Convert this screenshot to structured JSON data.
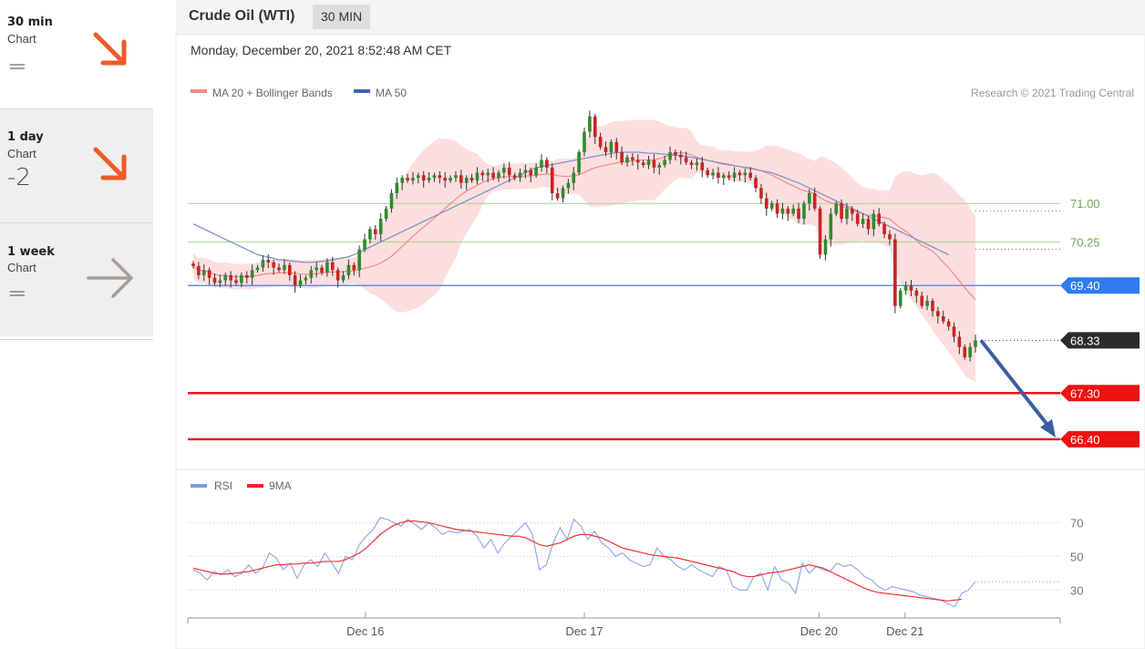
{
  "sidebar": {
    "timeframes": [
      {
        "name": "30 min",
        "sub": "Chart",
        "score": "=",
        "arrow": "down-right-arrow-icon",
        "color": "#f05a28"
      },
      {
        "name": "1 day",
        "sub": "Chart",
        "score": "-2",
        "arrow": "down-right-arrow-icon",
        "color": "#f05a28"
      },
      {
        "name": "1 week",
        "sub": "Chart",
        "score": "=",
        "arrow": "right-arrow-icon",
        "color": "#a89e96"
      }
    ]
  },
  "header": {
    "title": "Crude Oil (WTI)",
    "interval": "30 MIN"
  },
  "chart_data": {
    "type": "candlestick",
    "date_line": "Monday, December 20, 2021 8:52:48 AM CET",
    "legend": [
      {
        "label": "MA 20 + Bollinger Bands",
        "color": "#f08a8a"
      },
      {
        "label": "MA 50",
        "color": "#3e62b8"
      }
    ],
    "credit": "Research © 2021 Trading Central",
    "ylim": [
      65.9,
      72.8
    ],
    "levels": [
      {
        "value": 71.0,
        "label": "71.00",
        "style": "green-line"
      },
      {
        "value": 70.25,
        "label": "70.25",
        "style": "green-line"
      },
      {
        "value": 69.4,
        "label": "69.40",
        "style": "blue-badge",
        "color": "#2f7bf2"
      },
      {
        "value": 68.33,
        "label": "68.33",
        "style": "last-price-badge",
        "color": "#2b2b2b"
      },
      {
        "value": 67.3,
        "label": "67.30",
        "style": "red-badge",
        "color": "#ee1111"
      },
      {
        "value": 66.4,
        "label": "66.40",
        "style": "red-badge",
        "color": "#ee1111"
      }
    ],
    "x_ticks": [
      "Dec 16",
      "Dec 17",
      "Dec 20",
      "Dec 21"
    ],
    "x_tick_positions": [
      0.22,
      0.5,
      0.8,
      0.91
    ],
    "close": [
      69.78,
      69.6,
      69.7,
      69.55,
      69.45,
      69.5,
      69.6,
      69.5,
      69.45,
      69.6,
      69.55,
      69.7,
      69.75,
      69.9,
      69.85,
      69.75,
      69.7,
      69.8,
      69.6,
      69.4,
      69.5,
      69.55,
      69.7,
      69.75,
      69.65,
      69.85,
      69.7,
      69.5,
      69.6,
      69.8,
      69.7,
      70.1,
      70.3,
      70.5,
      70.4,
      70.7,
      70.9,
      71.2,
      71.4,
      71.5,
      71.45,
      71.5,
      71.55,
      71.45,
      71.5,
      71.55,
      71.5,
      71.45,
      71.5,
      71.55,
      71.4,
      71.5,
      71.45,
      71.6,
      71.55,
      71.6,
      71.5,
      71.6,
      71.7,
      71.55,
      71.5,
      71.6,
      71.65,
      71.55,
      71.7,
      71.85,
      71.7,
      71.2,
      71.1,
      71.3,
      71.4,
      71.6,
      72.0,
      72.4,
      72.7,
      72.3,
      72.1,
      72.0,
      72.2,
      72.0,
      71.8,
      71.9,
      71.85,
      71.8,
      71.75,
      71.85,
      71.7,
      71.75,
      71.85,
      72.0,
      71.95,
      71.9,
      71.8,
      71.75,
      71.8,
      71.65,
      71.55,
      71.6,
      71.5,
      71.55,
      71.5,
      71.6,
      71.55,
      71.6,
      71.5,
      71.3,
      71.1,
      70.9,
      71.0,
      70.8,
      70.9,
      70.8,
      70.9,
      70.7,
      71.0,
      71.2,
      70.9,
      70.0,
      70.3,
      70.8,
      71.0,
      70.7,
      70.9,
      70.8,
      70.6,
      70.7,
      70.5,
      70.8,
      70.6,
      70.4,
      70.3,
      69.0,
      69.3,
      69.4,
      69.3,
      69.2,
      69.0,
      69.1,
      68.9,
      68.8,
      68.7,
      68.6,
      68.4,
      68.2,
      68.0,
      68.2,
      68.33
    ],
    "ma50": [
      70.6,
      70.55,
      70.5,
      70.45,
      70.4,
      70.35,
      70.3,
      70.25,
      70.2,
      70.15,
      70.1,
      70.05,
      70.0,
      69.98,
      69.95,
      69.93,
      69.9,
      69.9,
      69.88,
      69.87,
      69.86,
      69.85,
      69.85,
      69.86,
      69.87,
      69.88,
      69.9,
      69.92,
      69.94,
      69.96,
      70.0,
      70.05,
      70.1,
      70.15,
      70.2,
      70.25,
      70.3,
      70.35,
      70.4,
      70.45,
      70.5,
      70.55,
      70.6,
      70.65,
      70.7,
      70.75,
      70.8,
      70.85,
      70.9,
      70.95,
      71.0,
      71.05,
      71.1,
      71.15,
      71.2,
      71.25,
      71.3,
      71.35,
      71.4,
      71.45,
      71.5,
      71.55,
      71.6,
      71.65,
      71.7,
      71.72,
      71.74,
      71.76,
      71.78,
      71.8,
      71.82,
      71.84,
      71.86,
      71.88,
      71.9,
      71.92,
      71.94,
      71.96,
      71.98,
      71.99,
      72.0,
      72.0,
      72.0,
      72.0,
      71.99,
      71.98,
      71.98,
      71.97,
      71.96,
      71.95,
      71.94,
      71.93,
      71.92,
      71.9,
      71.88,
      71.86,
      71.84,
      71.82,
      71.8,
      71.78,
      71.76,
      71.74,
      71.72,
      71.7,
      71.68,
      71.66,
      71.64,
      71.62,
      71.6,
      71.56,
      71.52,
      71.48,
      71.44,
      71.4,
      71.35,
      71.3,
      71.25,
      71.2,
      71.15,
      71.1,
      71.05,
      71.0,
      70.95,
      70.9,
      70.85,
      70.8,
      70.75,
      70.7,
      70.65,
      70.6,
      70.55,
      70.5,
      70.45,
      70.4,
      70.35,
      70.3,
      70.25,
      70.2,
      70.15,
      70.1,
      70.05,
      70.0
    ],
    "rsi": {
      "legend": [
        {
          "label": "RSI",
          "color": "#7b9ae0"
        },
        {
          "label": "9MA",
          "color": "#ee2222"
        }
      ],
      "ylim": [
        15,
        80
      ],
      "ticks": [
        70,
        50,
        30
      ],
      "values": [
        42,
        40,
        36,
        41,
        39,
        42,
        38,
        40,
        45,
        40,
        43,
        52,
        49,
        42,
        46,
        37,
        45,
        48,
        44,
        52,
        46,
        40,
        50,
        48,
        57,
        62,
        66,
        73,
        72,
        70,
        68,
        72,
        69,
        66,
        70,
        67,
        63,
        65,
        64,
        65,
        66,
        62,
        55,
        60,
        52,
        58,
        62,
        66,
        70,
        63,
        42,
        45,
        58,
        67,
        60,
        72,
        68,
        60,
        65,
        58,
        55,
        50,
        52,
        48,
        46,
        44,
        45,
        55,
        50,
        48,
        44,
        42,
        45,
        42,
        40,
        38,
        44,
        42,
        32,
        30,
        30,
        38,
        40,
        30,
        44,
        36,
        34,
        28,
        46,
        40,
        44,
        42,
        41,
        46,
        44,
        45,
        42,
        38,
        36,
        32,
        30,
        32,
        31,
        30,
        29,
        27,
        26,
        25,
        24,
        22,
        20,
        28,
        30,
        35
      ],
      "ma9": [
        43,
        42,
        41,
        40,
        39.5,
        39.5,
        40,
        40.5,
        41,
        42,
        43,
        44,
        45,
        45,
        45.5,
        45.5,
        46,
        46,
        46.5,
        47,
        47,
        47,
        48,
        50,
        52,
        55,
        59,
        63,
        66,
        68.5,
        70,
        71,
        71,
        70.5,
        70,
        69,
        68,
        67,
        66,
        65.5,
        65,
        64.5,
        64,
        63.5,
        63,
        62.5,
        62,
        62,
        61,
        59,
        57,
        56,
        57,
        58,
        60,
        62,
        63,
        63,
        62,
        61,
        59,
        57,
        55,
        54,
        53,
        52,
        51,
        50.5,
        50,
        49.5,
        49,
        48,
        47,
        46,
        45,
        44,
        43,
        42,
        41,
        39,
        38,
        38,
        39,
        40,
        40.5,
        41,
        42,
        43,
        44,
        45,
        44,
        43,
        41,
        39,
        37,
        35,
        33,
        31,
        29.5,
        28.5,
        28,
        27.5,
        27,
        26.5,
        26,
        25.5,
        25,
        24.5,
        24,
        23.5,
        24,
        24.5
      ]
    }
  }
}
